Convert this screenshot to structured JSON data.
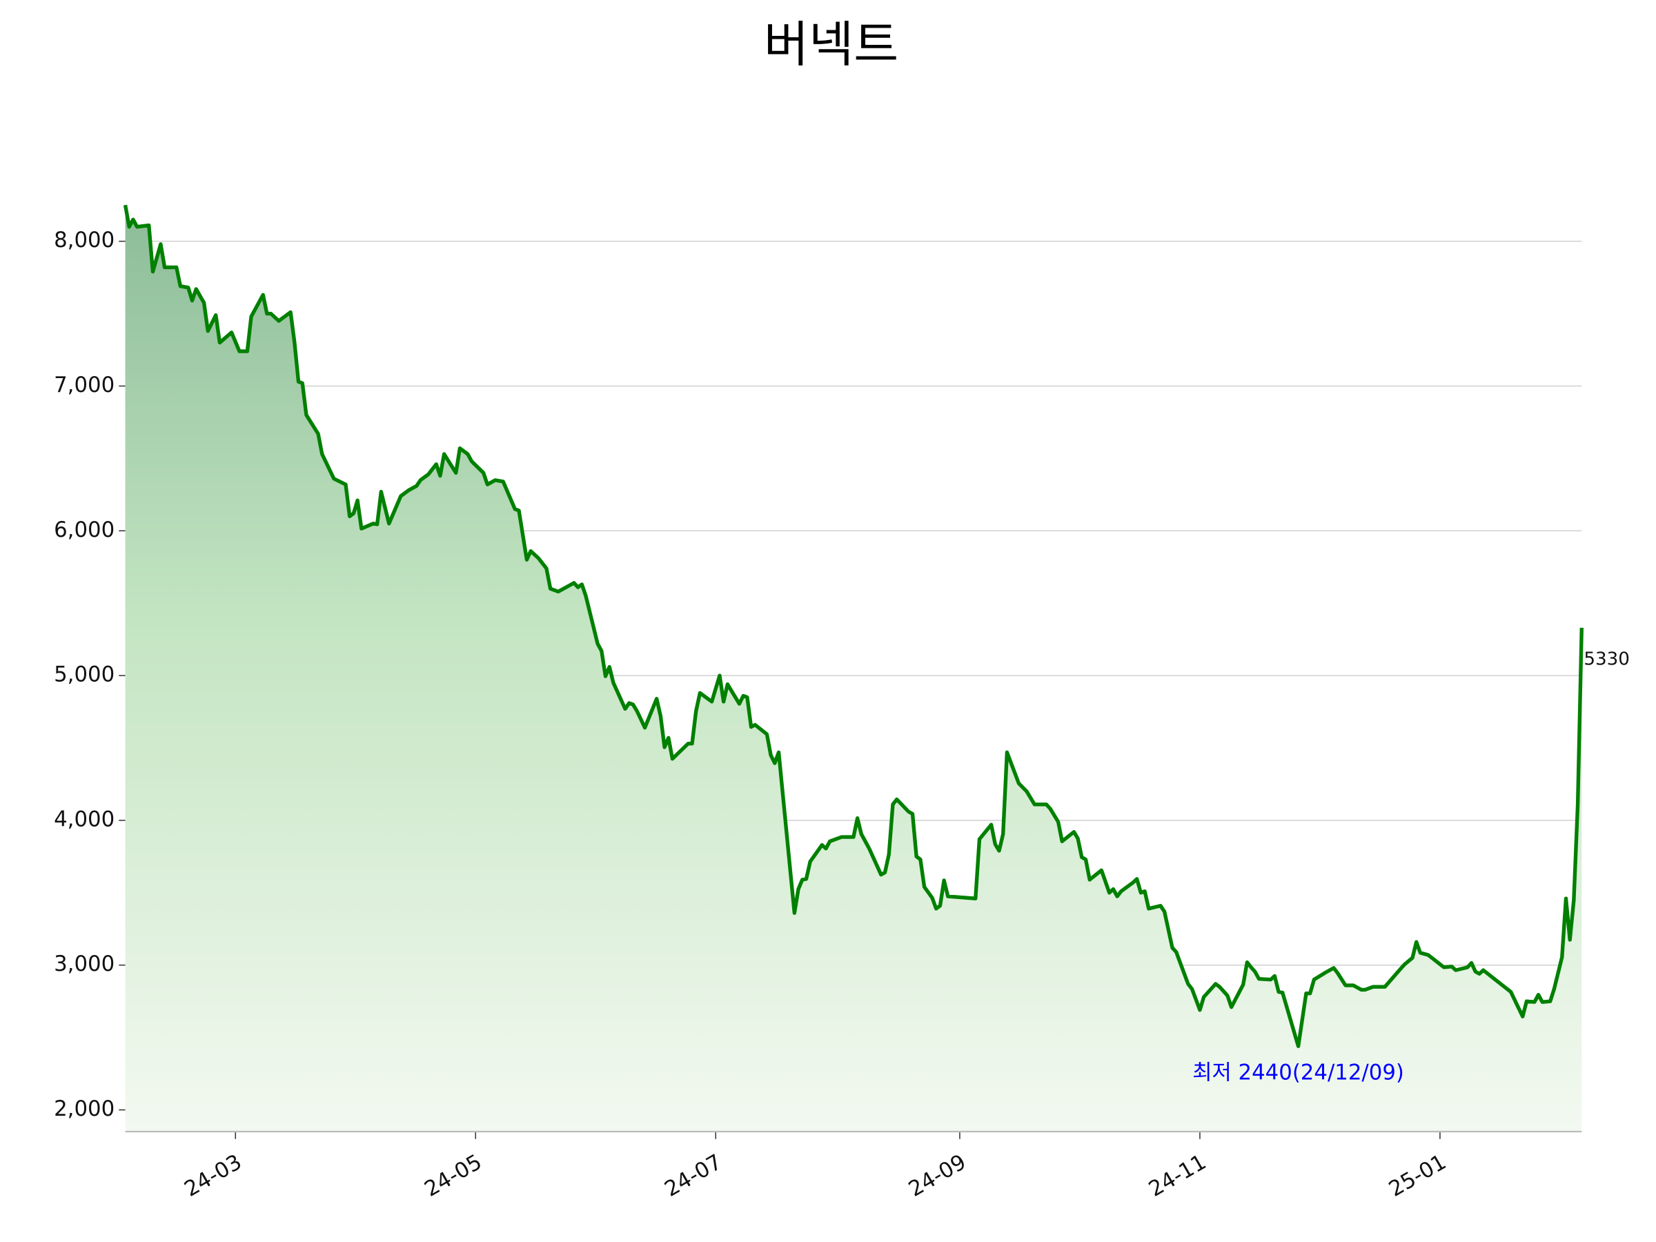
{
  "chart_data": {
    "type": "line",
    "title": "버넥트",
    "annotation": "최저 2440(24/12/09)",
    "x": [
      "2024-02-02",
      "2024-02-03",
      "2024-02-04",
      "2024-02-05",
      "2024-02-08",
      "2024-02-09",
      "2024-02-11",
      "2024-02-12",
      "2024-02-15",
      "2024-02-16",
      "2024-02-18",
      "2024-02-19",
      "2024-02-20",
      "2024-02-22",
      "2024-02-23",
      "2024-02-25",
      "2024-02-26",
      "2024-02-29",
      "2024-03-02",
      "2024-03-04",
      "2024-03-05",
      "2024-03-08",
      "2024-03-09",
      "2024-03-10",
      "2024-03-12",
      "2024-03-15",
      "2024-03-16",
      "2024-03-17",
      "2024-03-18",
      "2024-03-19",
      "2024-03-22",
      "2024-03-23",
      "2024-03-26",
      "2024-03-29",
      "2024-03-30",
      "2024-03-31",
      "2024-04-01",
      "2024-04-02",
      "2024-04-05",
      "2024-04-06",
      "2024-04-07",
      "2024-04-09",
      "2024-04-12",
      "2024-04-14",
      "2024-04-16",
      "2024-04-17",
      "2024-04-19",
      "2024-04-21",
      "2024-04-22",
      "2024-04-23",
      "2024-04-26",
      "2024-04-27",
      "2024-04-29",
      "2024-04-30",
      "2024-05-03",
      "2024-05-04",
      "2024-05-06",
      "2024-05-08",
      "2024-05-11",
      "2024-05-12",
      "2024-05-14",
      "2024-05-15",
      "2024-05-17",
      "2024-05-19",
      "2024-05-20",
      "2024-05-22",
      "2024-05-26",
      "2024-05-27",
      "2024-05-28",
      "2024-05-29",
      "2024-06-01",
      "2024-06-02",
      "2024-06-03",
      "2024-06-04",
      "2024-06-05",
      "2024-06-08",
      "2024-06-09",
      "2024-06-10",
      "2024-06-11",
      "2024-06-13",
      "2024-06-16",
      "2024-06-17",
      "2024-06-18",
      "2024-06-19",
      "2024-06-20",
      "2024-06-24",
      "2024-06-25",
      "2024-06-26",
      "2024-06-27",
      "2024-06-30",
      "2024-07-02",
      "2024-07-03",
      "2024-07-04",
      "2024-07-07",
      "2024-07-08",
      "2024-07-09",
      "2024-07-10",
      "2024-07-11",
      "2024-07-14",
      "2024-07-15",
      "2024-07-16",
      "2024-07-17",
      "2024-07-21",
      "2024-07-22",
      "2024-07-23",
      "2024-07-24",
      "2024-07-25",
      "2024-07-28",
      "2024-07-29",
      "2024-07-30",
      "2024-08-02",
      "2024-08-05",
      "2024-08-06",
      "2024-08-07",
      "2024-08-09",
      "2024-08-12",
      "2024-08-13",
      "2024-08-14",
      "2024-08-15",
      "2024-08-16",
      "2024-08-19",
      "2024-08-20",
      "2024-08-21",
      "2024-08-22",
      "2024-08-23",
      "2024-08-25",
      "2024-08-26",
      "2024-08-27",
      "2024-08-28",
      "2024-08-29",
      "2024-09-05",
      "2024-09-06",
      "2024-09-09",
      "2024-09-10",
      "2024-09-11",
      "2024-09-12",
      "2024-09-13",
      "2024-09-16",
      "2024-09-18",
      "2024-09-20",
      "2024-09-23",
      "2024-09-24",
      "2024-09-26",
      "2024-09-27",
      "2024-09-30",
      "2024-10-01",
      "2024-10-02",
      "2024-10-03",
      "2024-10-04",
      "2024-10-07",
      "2024-10-09",
      "2024-10-10",
      "2024-10-11",
      "2024-10-12",
      "2024-10-15",
      "2024-10-16",
      "2024-10-17",
      "2024-10-18",
      "2024-10-19",
      "2024-10-22",
      "2024-10-23",
      "2024-10-25",
      "2024-10-26",
      "2024-10-29",
      "2024-10-30",
      "2024-11-01",
      "2024-11-02",
      "2024-11-05",
      "2024-11-06",
      "2024-11-08",
      "2024-11-09",
      "2024-11-12",
      "2024-11-13",
      "2024-11-14",
      "2024-11-15",
      "2024-11-16",
      "2024-11-19",
      "2024-11-20",
      "2024-11-21",
      "2024-11-22",
      "2024-11-26",
      "2024-11-28",
      "2024-11-29",
      "2024-11-30",
      "2024-12-03",
      "2024-12-05",
      "2024-12-06",
      "2024-12-08",
      "2024-12-10",
      "2024-12-12",
      "2024-12-13",
      "2024-12-15",
      "2024-12-18",
      "2024-12-22",
      "2024-12-23",
      "2024-12-25",
      "2024-12-26",
      "2024-12-27",
      "2024-12-29",
      "2025-01-02",
      "2025-01-04",
      "2025-01-05",
      "2025-01-08",
      "2025-01-09",
      "2025-01-10",
      "2025-01-11",
      "2025-01-12",
      "2025-01-19",
      "2025-01-22",
      "2025-01-23",
      "2025-01-25",
      "2025-01-26",
      "2025-01-27",
      "2025-01-29",
      "2025-01-30",
      "2025-02-01",
      "2025-02-02",
      "2025-02-03",
      "2025-02-04",
      "2025-02-05",
      "2025-02-06"
    ],
    "series": [
      {
        "color": "#008000",
        "values": [
          8250,
          8100,
          8150,
          8100,
          8110,
          7790,
          7980,
          7820,
          7820,
          7690,
          7680,
          7590,
          7670,
          7575,
          7380,
          7490,
          7300,
          7370,
          7240,
          7240,
          7480,
          7630,
          7500,
          7500,
          7450,
          7510,
          7300,
          7030,
          7020,
          6800,
          6670,
          6530,
          6360,
          6320,
          6100,
          6120,
          6210,
          6015,
          6050,
          6045,
          6270,
          6050,
          6240,
          6280,
          6310,
          6350,
          6390,
          6460,
          6380,
          6530,
          6400,
          6570,
          6530,
          6480,
          6400,
          6320,
          6350,
          6340,
          6150,
          6140,
          5800,
          5860,
          5810,
          5740,
          5600,
          5580,
          5640,
          5610,
          5630,
          5550,
          5220,
          5170,
          4995,
          5060,
          4950,
          4770,
          4810,
          4800,
          4755,
          4640,
          4840,
          4720,
          4505,
          4570,
          4425,
          4530,
          4530,
          4755,
          4880,
          4820,
          5000,
          4820,
          4940,
          4805,
          4860,
          4850,
          4645,
          4660,
          4595,
          4450,
          4395,
          4470,
          3360,
          3525,
          3590,
          3595,
          3715,
          3830,
          3805,
          3855,
          3885,
          3885,
          4015,
          3905,
          3805,
          3625,
          3640,
          3765,
          4110,
          4145,
          4060,
          4045,
          3750,
          3730,
          3540,
          3465,
          3390,
          3410,
          3585,
          3475,
          3460,
          3870,
          3970,
          3835,
          3790,
          3905,
          4470,
          4255,
          4200,
          4110,
          4110,
          4080,
          3990,
          3855,
          3920,
          3875,
          3745,
          3730,
          3590,
          3655,
          3500,
          3525,
          3475,
          3510,
          3570,
          3595,
          3500,
          3510,
          3390,
          3410,
          3370,
          3120,
          3090,
          2870,
          2835,
          2690,
          2780,
          2870,
          2850,
          2790,
          2710,
          2865,
          3020,
          2985,
          2955,
          2905,
          2900,
          2925,
          2815,
          2810,
          2440,
          2805,
          2805,
          2900,
          2950,
          2980,
          2945,
          2860,
          2860,
          2830,
          2830,
          2850,
          2850,
          2975,
          3005,
          3050,
          3160,
          3085,
          3070,
          2985,
          2990,
          2965,
          2985,
          3015,
          2955,
          2940,
          2965,
          2815,
          2645,
          2750,
          2745,
          2795,
          2745,
          2750,
          2835,
          3055,
          3460,
          3175,
          3450,
          4110,
          5330
        ]
      }
    ],
    "xlim": [
      "2024-02-02",
      "2025-02-06"
    ],
    "xticks": [
      {
        "value": "2024-03-01",
        "label": "24-03"
      },
      {
        "value": "2024-05-01",
        "label": "24-05"
      },
      {
        "value": "2024-07-01",
        "label": "24-07"
      },
      {
        "value": "2024-09-01",
        "label": "24-09"
      },
      {
        "value": "2024-11-01",
        "label": "24-11"
      },
      {
        "value": "2025-01-01",
        "label": "25-01"
      }
    ],
    "ylim": [
      1850,
      8310
    ],
    "yticks": [
      {
        "value": 2000,
        "label": "2,000"
      },
      {
        "value": 3000,
        "label": "3,000"
      },
      {
        "value": 4000,
        "label": "4,000"
      },
      {
        "value": 5000,
        "label": "5,000"
      },
      {
        "value": 6000,
        "label": "6,000"
      },
      {
        "value": 7000,
        "label": "7,000"
      },
      {
        "value": 8000,
        "label": "8,000"
      }
    ],
    "grid": true
  }
}
